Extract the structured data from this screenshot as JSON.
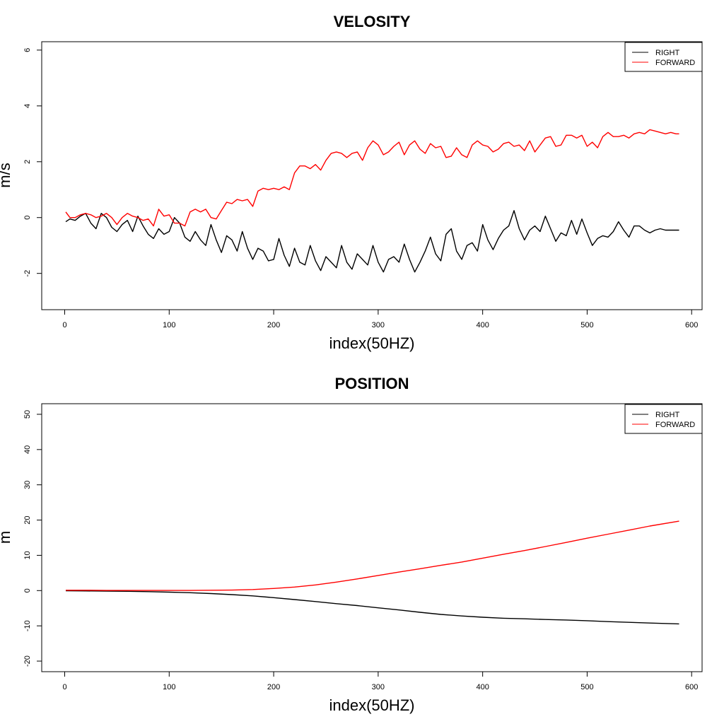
{
  "chart_data": [
    {
      "type": "line",
      "title": "VELOSITY",
      "xlabel": "index(50HZ)",
      "ylabel": "m/s",
      "xlim": [
        -22,
        610
      ],
      "ylim": [
        -3.3,
        6.3
      ],
      "xticks": [
        0,
        100,
        200,
        300,
        400,
        500,
        600
      ],
      "xtick_labels": [
        "0",
        "100",
        "200",
        "300",
        "400",
        "500",
        "600"
      ],
      "yticks": [
        -2,
        0,
        2,
        4,
        6
      ],
      "ytick_labels": [
        "-2",
        "0",
        "2",
        "4",
        "6"
      ],
      "grid": false,
      "legend_position": "top-right",
      "legend": [
        "RIGHT",
        "FORWARD"
      ],
      "series": [
        {
          "name": "RIGHT",
          "color": "#000000",
          "x": [
            1,
            5,
            10,
            15,
            20,
            25,
            30,
            35,
            40,
            45,
            50,
            55,
            60,
            65,
            70,
            75,
            80,
            85,
            90,
            95,
            100,
            105,
            110,
            115,
            120,
            125,
            130,
            135,
            140,
            145,
            150,
            155,
            160,
            165,
            170,
            175,
            180,
            185,
            190,
            195,
            200,
            205,
            210,
            215,
            220,
            225,
            230,
            235,
            240,
            245,
            250,
            255,
            260,
            265,
            270,
            275,
            280,
            285,
            290,
            295,
            300,
            305,
            310,
            315,
            320,
            325,
            330,
            335,
            340,
            345,
            350,
            355,
            360,
            365,
            370,
            375,
            380,
            385,
            390,
            395,
            400,
            405,
            410,
            415,
            420,
            425,
            430,
            435,
            440,
            445,
            450,
            455,
            460,
            465,
            470,
            475,
            480,
            485,
            490,
            495,
            500,
            505,
            510,
            515,
            520,
            525,
            530,
            535,
            540,
            545,
            550,
            555,
            560,
            565,
            570,
            575,
            580,
            585,
            588
          ],
          "values": [
            -0.15,
            -0.05,
            -0.1,
            0.05,
            0.15,
            -0.2,
            -0.4,
            0.15,
            0.0,
            -0.35,
            -0.5,
            -0.25,
            -0.1,
            -0.5,
            0.05,
            -0.3,
            -0.6,
            -0.75,
            -0.4,
            -0.6,
            -0.5,
            0.0,
            -0.2,
            -0.7,
            -0.85,
            -0.5,
            -0.8,
            -1.0,
            -0.25,
            -0.8,
            -1.25,
            -0.65,
            -0.8,
            -1.2,
            -0.5,
            -1.1,
            -1.5,
            -1.1,
            -1.2,
            -1.55,
            -1.5,
            -0.75,
            -1.35,
            -1.75,
            -1.1,
            -1.6,
            -1.7,
            -1.0,
            -1.55,
            -1.9,
            -1.4,
            -1.6,
            -1.8,
            -1.0,
            -1.6,
            -1.85,
            -1.3,
            -1.5,
            -1.7,
            -1.0,
            -1.6,
            -1.95,
            -1.5,
            -1.4,
            -1.6,
            -0.95,
            -1.5,
            -1.95,
            -1.6,
            -1.2,
            -0.7,
            -1.3,
            -1.55,
            -0.6,
            -0.4,
            -1.2,
            -1.5,
            -1.0,
            -0.9,
            -1.2,
            -0.25,
            -0.8,
            -1.15,
            -0.75,
            -0.45,
            -0.3,
            0.25,
            -0.4,
            -0.8,
            -0.45,
            -0.3,
            -0.5,
            0.05,
            -0.4,
            -0.85,
            -0.55,
            -0.65,
            -0.1,
            -0.6,
            -0.05,
            -0.55,
            -1.0,
            -0.75,
            -0.65,
            -0.7,
            -0.5,
            -0.15,
            -0.45,
            -0.7,
            -0.3,
            -0.3,
            -0.45,
            -0.55,
            -0.45,
            -0.4,
            -0.45,
            -0.45,
            -0.45,
            -0.45
          ]
        },
        {
          "name": "FORWARD",
          "color": "#ff0000",
          "x": [
            1,
            5,
            10,
            15,
            20,
            25,
            30,
            35,
            40,
            45,
            50,
            55,
            60,
            65,
            70,
            75,
            80,
            85,
            90,
            95,
            100,
            105,
            110,
            115,
            120,
            125,
            130,
            135,
            140,
            145,
            150,
            155,
            160,
            165,
            170,
            175,
            180,
            185,
            190,
            195,
            200,
            205,
            210,
            215,
            220,
            225,
            230,
            235,
            240,
            245,
            250,
            255,
            260,
            265,
            270,
            275,
            280,
            285,
            290,
            295,
            300,
            305,
            310,
            315,
            320,
            325,
            330,
            335,
            340,
            345,
            350,
            355,
            360,
            365,
            370,
            375,
            380,
            385,
            390,
            395,
            400,
            405,
            410,
            415,
            420,
            425,
            430,
            435,
            440,
            445,
            450,
            455,
            460,
            465,
            470,
            475,
            480,
            485,
            490,
            495,
            500,
            505,
            510,
            515,
            520,
            525,
            530,
            535,
            540,
            545,
            550,
            555,
            560,
            565,
            570,
            575,
            580,
            585,
            588
          ],
          "values": [
            0.2,
            0.0,
            0.0,
            0.1,
            0.15,
            0.1,
            0.0,
            0.05,
            0.15,
            0.0,
            -0.25,
            0.0,
            0.15,
            0.05,
            0.0,
            -0.1,
            -0.05,
            -0.3,
            0.3,
            0.05,
            0.1,
            -0.2,
            -0.2,
            -0.3,
            0.2,
            0.3,
            0.2,
            0.3,
            0.0,
            -0.05,
            0.25,
            0.55,
            0.5,
            0.65,
            0.6,
            0.65,
            0.4,
            0.95,
            1.05,
            1.0,
            1.05,
            1.0,
            1.1,
            1.0,
            1.6,
            1.85,
            1.85,
            1.75,
            1.9,
            1.7,
            2.05,
            2.3,
            2.35,
            2.3,
            2.15,
            2.3,
            2.35,
            2.05,
            2.5,
            2.75,
            2.6,
            2.25,
            2.35,
            2.55,
            2.7,
            2.25,
            2.6,
            2.75,
            2.45,
            2.3,
            2.65,
            2.5,
            2.55,
            2.15,
            2.2,
            2.5,
            2.25,
            2.15,
            2.6,
            2.75,
            2.6,
            2.55,
            2.35,
            2.45,
            2.65,
            2.7,
            2.55,
            2.6,
            2.4,
            2.75,
            2.35,
            2.6,
            2.85,
            2.9,
            2.55,
            2.6,
            2.95,
            2.95,
            2.85,
            2.95,
            2.55,
            2.7,
            2.5,
            2.9,
            3.05,
            2.9,
            2.9,
            2.95,
            2.85,
            3.0,
            3.05,
            3.0,
            3.15,
            3.1,
            3.05,
            3.0,
            3.05,
            3.0,
            3.0
          ]
        }
      ]
    },
    {
      "type": "line",
      "title": "POSITION",
      "xlabel": "index(50HZ)",
      "ylabel": "m",
      "xlim": [
        -22,
        610
      ],
      "ylim": [
        -23,
        53
      ],
      "xticks": [
        0,
        100,
        200,
        300,
        400,
        500,
        600
      ],
      "xtick_labels": [
        "0",
        "100",
        "200",
        "300",
        "400",
        "500",
        "600"
      ],
      "yticks": [
        -20,
        -10,
        0,
        10,
        20,
        30,
        40,
        50
      ],
      "ytick_labels": [
        "-20",
        "-10",
        "0",
        "10",
        "20",
        "30",
        "40",
        "50"
      ],
      "grid": false,
      "legend_position": "top-right",
      "legend": [
        "RIGHT",
        "FORWARD"
      ],
      "series": [
        {
          "name": "RIGHT",
          "color": "#000000",
          "x": [
            1,
            20,
            40,
            60,
            80,
            100,
            120,
            140,
            160,
            180,
            200,
            220,
            240,
            260,
            280,
            300,
            320,
            340,
            360,
            380,
            400,
            420,
            440,
            460,
            480,
            500,
            520,
            540,
            560,
            588
          ],
          "values": [
            -0.05,
            -0.1,
            -0.15,
            -0.2,
            -0.3,
            -0.45,
            -0.6,
            -0.85,
            -1.15,
            -1.5,
            -2.0,
            -2.55,
            -3.1,
            -3.7,
            -4.25,
            -4.9,
            -5.5,
            -6.15,
            -6.75,
            -7.2,
            -7.55,
            -7.85,
            -8.0,
            -8.2,
            -8.35,
            -8.55,
            -8.8,
            -9.0,
            -9.2,
            -9.45
          ]
        },
        {
          "name": "FORWARD",
          "color": "#ff0000",
          "x": [
            1,
            20,
            40,
            60,
            80,
            100,
            120,
            140,
            160,
            180,
            200,
            220,
            240,
            260,
            280,
            300,
            320,
            340,
            360,
            380,
            400,
            420,
            440,
            460,
            480,
            500,
            520,
            540,
            560,
            588
          ],
          "values": [
            0.1,
            0.1,
            0.05,
            0.05,
            0.05,
            0.05,
            0.05,
            0.1,
            0.15,
            0.3,
            0.6,
            1.0,
            1.6,
            2.4,
            3.3,
            4.3,
            5.25,
            6.2,
            7.15,
            8.1,
            9.2,
            10.3,
            11.35,
            12.5,
            13.65,
            14.85,
            16.0,
            17.15,
            18.3,
            19.7
          ]
        }
      ]
    }
  ]
}
